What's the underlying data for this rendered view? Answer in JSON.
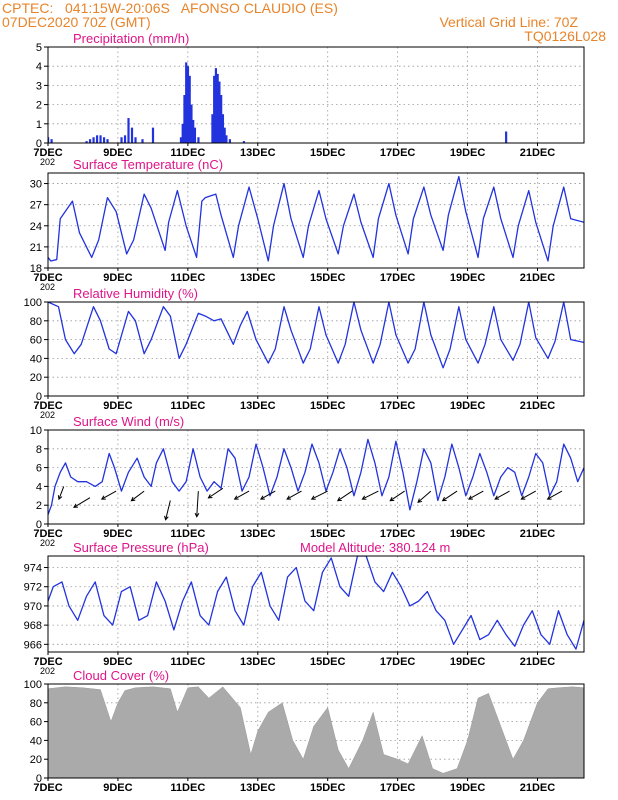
{
  "header": {
    "line1_left": "CPTEC:   041:15W-20:06S   AFONSO CLAUDIO (ES)",
    "line2_left": "07DEC2020 70Z (GMT)",
    "line2_right": "Vertical Grid Line: 70Z",
    "line3_right": "TQ0126L028"
  },
  "colors": {
    "header": "#e8842a",
    "title": "#e0158a",
    "line": "#2233dd",
    "cloud": "#aaaaaa"
  },
  "x_axis": {
    "tick_labels": [
      "7DEC",
      "9DEC",
      "11DEC",
      "13DEC",
      "15DEC",
      "17DEC",
      "19DEC",
      "21DEC"
    ],
    "tick_days": [
      0,
      2,
      4,
      6,
      8,
      10,
      12,
      14
    ],
    "clipped_year_label": "202",
    "start_day": 0,
    "end_day": 15.33
  },
  "chart_data": [
    {
      "type": "bar",
      "title": "Precipitation (mm/h)",
      "ylim": [
        0,
        5
      ],
      "yticks": [
        0,
        1,
        2,
        3,
        4,
        5
      ],
      "grid": true,
      "x": [
        0.0,
        0.1,
        1.1,
        1.2,
        1.3,
        1.4,
        1.5,
        1.6,
        1.7,
        2.1,
        2.2,
        2.3,
        2.4,
        2.5,
        2.7,
        3.0,
        3.8,
        3.85,
        3.9,
        3.95,
        4.0,
        4.05,
        4.1,
        4.15,
        4.2,
        4.3,
        4.7,
        4.75,
        4.8,
        4.85,
        4.9,
        4.95,
        5.0,
        5.05,
        5.1,
        5.2,
        5.6,
        13.1
      ],
      "values": [
        0.3,
        0.2,
        0.1,
        0.2,
        0.3,
        0.4,
        0.4,
        0.3,
        0.2,
        0.3,
        0.4,
        1.3,
        0.8,
        0.3,
        0.2,
        0.8,
        0.3,
        1.0,
        2.5,
        4.2,
        4.0,
        3.5,
        2.0,
        1.2,
        0.8,
        0.3,
        1.5,
        3.5,
        3.9,
        3.6,
        3.2,
        2.5,
        1.5,
        0.8,
        0.4,
        0.2,
        0.1,
        0.6
      ]
    },
    {
      "type": "line",
      "title": "Surface Temperature (nC)",
      "ylim": [
        18,
        31.5
      ],
      "yticks": [
        18,
        21,
        24,
        27,
        30
      ],
      "grid": true,
      "x": [
        0.0,
        0.08,
        0.25,
        0.35,
        0.7,
        0.9,
        1.25,
        1.45,
        1.7,
        1.95,
        2.25,
        2.45,
        2.75,
        2.95,
        3.35,
        3.45,
        3.7,
        3.95,
        4.25,
        4.4,
        4.5,
        4.8,
        4.95,
        5.3,
        5.45,
        5.75,
        6.0,
        6.3,
        6.45,
        6.75,
        6.95,
        7.3,
        7.45,
        7.75,
        7.95,
        8.3,
        8.45,
        8.75,
        8.95,
        9.3,
        9.45,
        9.75,
        9.95,
        10.3,
        10.45,
        10.75,
        10.95,
        11.3,
        11.45,
        11.75,
        11.95,
        12.3,
        12.45,
        12.75,
        12.95,
        13.3,
        13.45,
        13.75,
        13.95,
        14.3,
        14.45,
        14.75,
        14.95,
        15.33
      ],
      "values": [
        19.5,
        19.0,
        19.2,
        25.0,
        27.5,
        23.0,
        19.5,
        22.0,
        28.0,
        26.0,
        20.0,
        22.0,
        28.5,
        26.5,
        20.5,
        24.5,
        29.0,
        24.0,
        19.5,
        27.5,
        28.0,
        28.5,
        25.5,
        19.5,
        24.0,
        29.5,
        25.0,
        19.0,
        24.0,
        30.0,
        25.0,
        19.5,
        24.0,
        29.0,
        25.0,
        20.0,
        24.0,
        28.5,
        24.5,
        19.5,
        25.0,
        30.0,
        25.5,
        20.0,
        25.0,
        29.5,
        25.5,
        20.5,
        25.5,
        31.0,
        26.0,
        19.5,
        25.0,
        29.5,
        25.0,
        19.5,
        24.0,
        29.0,
        24.5,
        19.0,
        24.0,
        29.5,
        25.0,
        24.5
      ]
    },
    {
      "type": "line",
      "title": "Relative Humidity (%)",
      "ylim": [
        0,
        100
      ],
      "yticks": [
        0,
        20,
        40,
        60,
        80,
        100
      ],
      "grid": true,
      "x": [
        0.0,
        0.3,
        0.5,
        0.75,
        0.95,
        1.3,
        1.5,
        1.75,
        1.95,
        2.3,
        2.5,
        2.75,
        2.95,
        3.3,
        3.5,
        3.75,
        3.95,
        4.3,
        4.5,
        4.75,
        4.95,
        5.3,
        5.5,
        5.7,
        5.95,
        6.3,
        6.5,
        6.75,
        6.95,
        7.3,
        7.5,
        7.75,
        7.95,
        8.3,
        8.5,
        8.75,
        8.95,
        9.3,
        9.5,
        9.75,
        9.95,
        10.3,
        10.5,
        10.75,
        10.95,
        11.3,
        11.5,
        11.75,
        11.95,
        12.3,
        12.5,
        12.75,
        12.95,
        13.3,
        13.5,
        13.75,
        13.95,
        14.3,
        14.5,
        14.75,
        14.95,
        15.33
      ],
      "values": [
        100,
        95,
        60,
        45,
        55,
        95,
        80,
        50,
        45,
        90,
        80,
        45,
        60,
        95,
        85,
        40,
        55,
        88,
        85,
        80,
        82,
        55,
        75,
        90,
        60,
        35,
        50,
        95,
        70,
        35,
        50,
        95,
        65,
        35,
        55,
        100,
        70,
        35,
        55,
        100,
        65,
        35,
        50,
        100,
        65,
        30,
        50,
        95,
        60,
        35,
        55,
        95,
        60,
        38,
        55,
        100,
        62,
        40,
        58,
        100,
        60,
        57
      ]
    },
    {
      "type": "line",
      "title": "Surface Wind (m/s)",
      "ylim": [
        0,
        10
      ],
      "yticks": [
        0,
        2,
        4,
        6,
        8,
        10
      ],
      "grid": true,
      "x": [
        0.0,
        0.1,
        0.2,
        0.35,
        0.5,
        0.65,
        0.85,
        1.1,
        1.35,
        1.55,
        1.75,
        1.9,
        2.1,
        2.3,
        2.55,
        2.75,
        2.95,
        3.1,
        3.3,
        3.55,
        3.75,
        3.95,
        4.15,
        4.35,
        4.55,
        4.75,
        4.95,
        5.15,
        5.35,
        5.55,
        5.75,
        5.95,
        6.15,
        6.35,
        6.55,
        6.75,
        6.95,
        7.15,
        7.35,
        7.55,
        7.75,
        7.95,
        8.15,
        8.35,
        8.55,
        8.75,
        8.95,
        9.15,
        9.35,
        9.55,
        9.75,
        9.95,
        10.15,
        10.35,
        10.55,
        10.75,
        10.95,
        11.15,
        11.35,
        11.55,
        11.75,
        11.95,
        12.15,
        12.35,
        12.55,
        12.75,
        12.95,
        13.15,
        13.35,
        13.55,
        13.75,
        13.95,
        14.15,
        14.35,
        14.55,
        14.75,
        14.95,
        15.15,
        15.33
      ],
      "values": [
        1.0,
        2.0,
        4.0,
        5.5,
        6.5,
        5.0,
        4.5,
        4.5,
        4.0,
        4.5,
        7.5,
        6.0,
        3.5,
        5.5,
        7.0,
        5.0,
        4.0,
        6.5,
        8.0,
        4.5,
        3.5,
        4.5,
        8.0,
        5.0,
        3.5,
        4.5,
        3.8,
        8.0,
        7.0,
        3.5,
        5.0,
        8.5,
        6.0,
        3.0,
        5.0,
        8.0,
        6.0,
        3.5,
        5.5,
        8.5,
        6.5,
        3.5,
        5.5,
        8.0,
        6.0,
        3.0,
        5.5,
        9.0,
        6.5,
        3.0,
        5.0,
        8.8,
        5.5,
        1.5,
        4.5,
        8.0,
        6.5,
        2.5,
        5.0,
        8.5,
        6.0,
        3.0,
        5.0,
        7.5,
        5.5,
        3.0,
        5.0,
        6.0,
        5.5,
        3.0,
        5.0,
        7.5,
        6.5,
        3.0,
        4.5,
        8.5,
        7.0,
        4.5,
        6.0
      ],
      "arrows": {
        "x": [
          0.45,
          1.2,
          1.95,
          2.75,
          3.5,
          4.3,
          5.0,
          5.75,
          6.5,
          7.25,
          8.0,
          8.7,
          9.45,
          10.2,
          10.95,
          11.7,
          12.45,
          13.2,
          13.95,
          14.7
        ],
        "y": [
          4.0,
          2.8,
          3.5,
          3.5,
          2.5,
          3.5,
          3.8,
          3.5,
          3.5,
          3.5,
          3.5,
          3.5,
          3.5,
          3.5,
          3.5,
          3.5,
          3.5,
          3.5,
          3.5,
          3.5
        ],
        "u": [
          -0.3,
          -1.0,
          -0.9,
          -0.8,
          -0.3,
          -0.1,
          -0.9,
          -0.9,
          -0.9,
          -0.9,
          -1.0,
          -0.9,
          -1.0,
          -0.9,
          -0.8,
          -0.9,
          -0.9,
          -0.9,
          -0.9,
          -0.9
        ],
        "v": [
          -0.8,
          -0.6,
          -0.5,
          -0.6,
          -1.2,
          -1.6,
          -0.6,
          -0.5,
          -0.5,
          -0.5,
          -0.5,
          -0.6,
          -0.5,
          -0.6,
          -0.7,
          -0.6,
          -0.5,
          -0.5,
          -0.5,
          -0.5
        ]
      }
    },
    {
      "type": "line",
      "title": "Surface Pressure (hPa)",
      "annotation": "Model Altitude: 380.124 m",
      "ylim": [
        965.2,
        975.2
      ],
      "yticks": [
        966,
        968,
        970,
        972,
        974
      ],
      "grid": true,
      "x": [
        0.0,
        0.15,
        0.4,
        0.6,
        0.85,
        1.1,
        1.35,
        1.6,
        1.85,
        2.1,
        2.35,
        2.6,
        2.85,
        3.1,
        3.35,
        3.6,
        3.85,
        4.1,
        4.35,
        4.6,
        4.85,
        5.1,
        5.35,
        5.6,
        5.85,
        6.1,
        6.35,
        6.6,
        6.85,
        7.1,
        7.35,
        7.6,
        7.85,
        8.1,
        8.35,
        8.6,
        8.85,
        9.1,
        9.35,
        9.6,
        9.85,
        10.1,
        10.35,
        10.6,
        10.85,
        11.1,
        11.35,
        11.6,
        11.85,
        12.1,
        12.35,
        12.6,
        12.85,
        13.1,
        13.35,
        13.6,
        13.85,
        14.1,
        14.35,
        14.6,
        14.85,
        15.1,
        15.33
      ],
      "values": [
        970.5,
        972.0,
        972.5,
        970.0,
        968.5,
        971.0,
        972.5,
        969.0,
        968.0,
        971.5,
        972.0,
        968.5,
        969.0,
        972.5,
        970.5,
        967.5,
        970.5,
        972.5,
        969.0,
        968.0,
        971.5,
        973.0,
        969.5,
        968.0,
        972.0,
        973.5,
        970.0,
        968.5,
        973.0,
        974.0,
        970.5,
        969.5,
        973.5,
        975.0,
        972.0,
        971.0,
        975.2,
        975.2,
        972.5,
        971.5,
        973.5,
        972.0,
        970.0,
        970.5,
        971.5,
        969.5,
        968.5,
        966.0,
        967.5,
        969.0,
        966.5,
        967.0,
        968.5,
        967.0,
        965.8,
        968.0,
        969.5,
        967.0,
        966.0,
        969.5,
        967.0,
        965.5,
        968.5
      ]
    },
    {
      "type": "area",
      "title": "Cloud Cover (%)",
      "ylim": [
        0,
        100
      ],
      "yticks": [
        0,
        20,
        40,
        60,
        80,
        100
      ],
      "grid": true,
      "x": [
        0.0,
        0.5,
        1.0,
        1.5,
        1.8,
        2.0,
        2.2,
        2.5,
        3.0,
        3.5,
        3.7,
        4.0,
        4.3,
        4.6,
        5.0,
        5.5,
        5.8,
        6.0,
        6.3,
        6.7,
        7.0,
        7.3,
        7.6,
        8.0,
        8.3,
        8.6,
        9.0,
        9.3,
        9.6,
        10.0,
        10.3,
        10.7,
        11.0,
        11.3,
        11.7,
        12.0,
        12.3,
        12.6,
        13.0,
        13.3,
        13.6,
        14.0,
        14.3,
        14.6,
        15.0,
        15.33
      ],
      "values": [
        95,
        97,
        96,
        94,
        60,
        80,
        93,
        96,
        97,
        95,
        70,
        96,
        97,
        85,
        97,
        75,
        25,
        50,
        70,
        80,
        40,
        20,
        55,
        75,
        30,
        10,
        40,
        70,
        25,
        20,
        15,
        45,
        10,
        5,
        10,
        40,
        85,
        90,
        50,
        20,
        40,
        80,
        95,
        96,
        97,
        96
      ]
    }
  ]
}
